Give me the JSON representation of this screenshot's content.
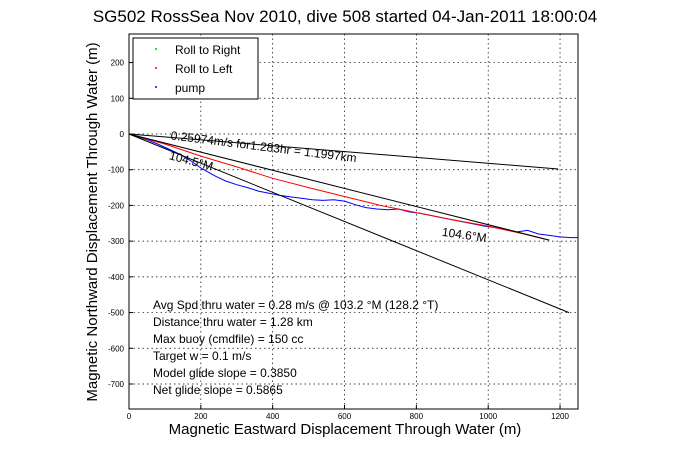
{
  "chart_data": {
    "type": "line",
    "title": "SG502 RossSea Nov 2010, dive 508 started 04-Jan-2011 18:00:04",
    "xlabel": "Magnetic Eastward Displacement Through Water (m)",
    "ylabel": "Magnetic Northward Displacement Through Water (m)",
    "xlim": [
      0,
      1250
    ],
    "ylim": [
      -770,
      280
    ],
    "xticks": [
      0,
      200,
      400,
      600,
      800,
      1000,
      1200
    ],
    "yticks": [
      200,
      100,
      0,
      -100,
      -200,
      -300,
      -400,
      -500,
      -600,
      -700
    ],
    "grid": true,
    "legend": {
      "position": "top-left",
      "entries": [
        {
          "label": "Roll to Right",
          "color": "#00cc00"
        },
        {
          "label": "Roll to Left",
          "color": "#ff0000"
        },
        {
          "label": "pump",
          "color": "#0000ff"
        }
      ]
    },
    "series": [
      {
        "color": "#0000ff",
        "x": [
          0,
          25,
          50,
          80,
          110,
          140,
          170,
          200,
          240,
          270,
          300,
          330,
          360,
          390,
          420,
          450,
          480,
          510,
          540,
          570,
          600,
          630,
          660,
          690,
          720,
          750,
          780,
          810,
          840,
          870,
          900,
          930,
          960,
          990,
          1020,
          1050,
          1080,
          1110,
          1140,
          1170,
          1200,
          1230,
          1250
        ],
        "y": [
          0,
          -8,
          -16,
          -28,
          -42,
          -56,
          -74,
          -95,
          -118,
          -132,
          -142,
          -150,
          -160,
          -166,
          -172,
          -176,
          -180,
          -184,
          -186,
          -184,
          -188,
          -198,
          -206,
          -210,
          -212,
          -210,
          -218,
          -222,
          -228,
          -234,
          -240,
          -246,
          -252,
          -258,
          -262,
          -268,
          -274,
          -270,
          -280,
          -284,
          -288,
          -290,
          -290
        ]
      },
      {
        "color": "#ff0000",
        "x": [
          0,
          100,
          200,
          300,
          400,
          500,
          600,
          700,
          800,
          900,
          1000,
          1100,
          1160
        ],
        "y": [
          0,
          -28,
          -62,
          -92,
          -124,
          -150,
          -175,
          -200,
          -220,
          -240,
          -258,
          -280,
          -295
        ]
      },
      {
        "color": "#000000",
        "x": [
          0,
          1195
        ],
        "y": [
          0,
          -98
        ]
      },
      {
        "color": "#000000",
        "x": [
          0,
          1225
        ],
        "y": [
          0,
          -500
        ]
      },
      {
        "color": "#000000",
        "x": [
          0,
          1170
        ],
        "y": [
          0,
          -297
        ]
      }
    ],
    "annotations": [
      {
        "text": "0.25974m/s for1.283hr = 1.1997km",
        "x": 115,
        "y": -15,
        "angle": 7
      },
      {
        "text": "104.5°M",
        "x": 110,
        "y": -70,
        "angle": 15
      },
      {
        "text": "104.6°M",
        "x": 870,
        "y": -285,
        "angle": 8
      }
    ],
    "stats": [
      "Avg Spd thru water =  0.28 m/s @ 103.2   °M (128.2 °T)",
      "Distance thru water =  1.28 km",
      "Max buoy (cmdfile) = 150 cc",
      "Target w = 0.1 m/s",
      "Model glide slope = 0.3850",
      "Net glide slope = 0.5865"
    ]
  }
}
